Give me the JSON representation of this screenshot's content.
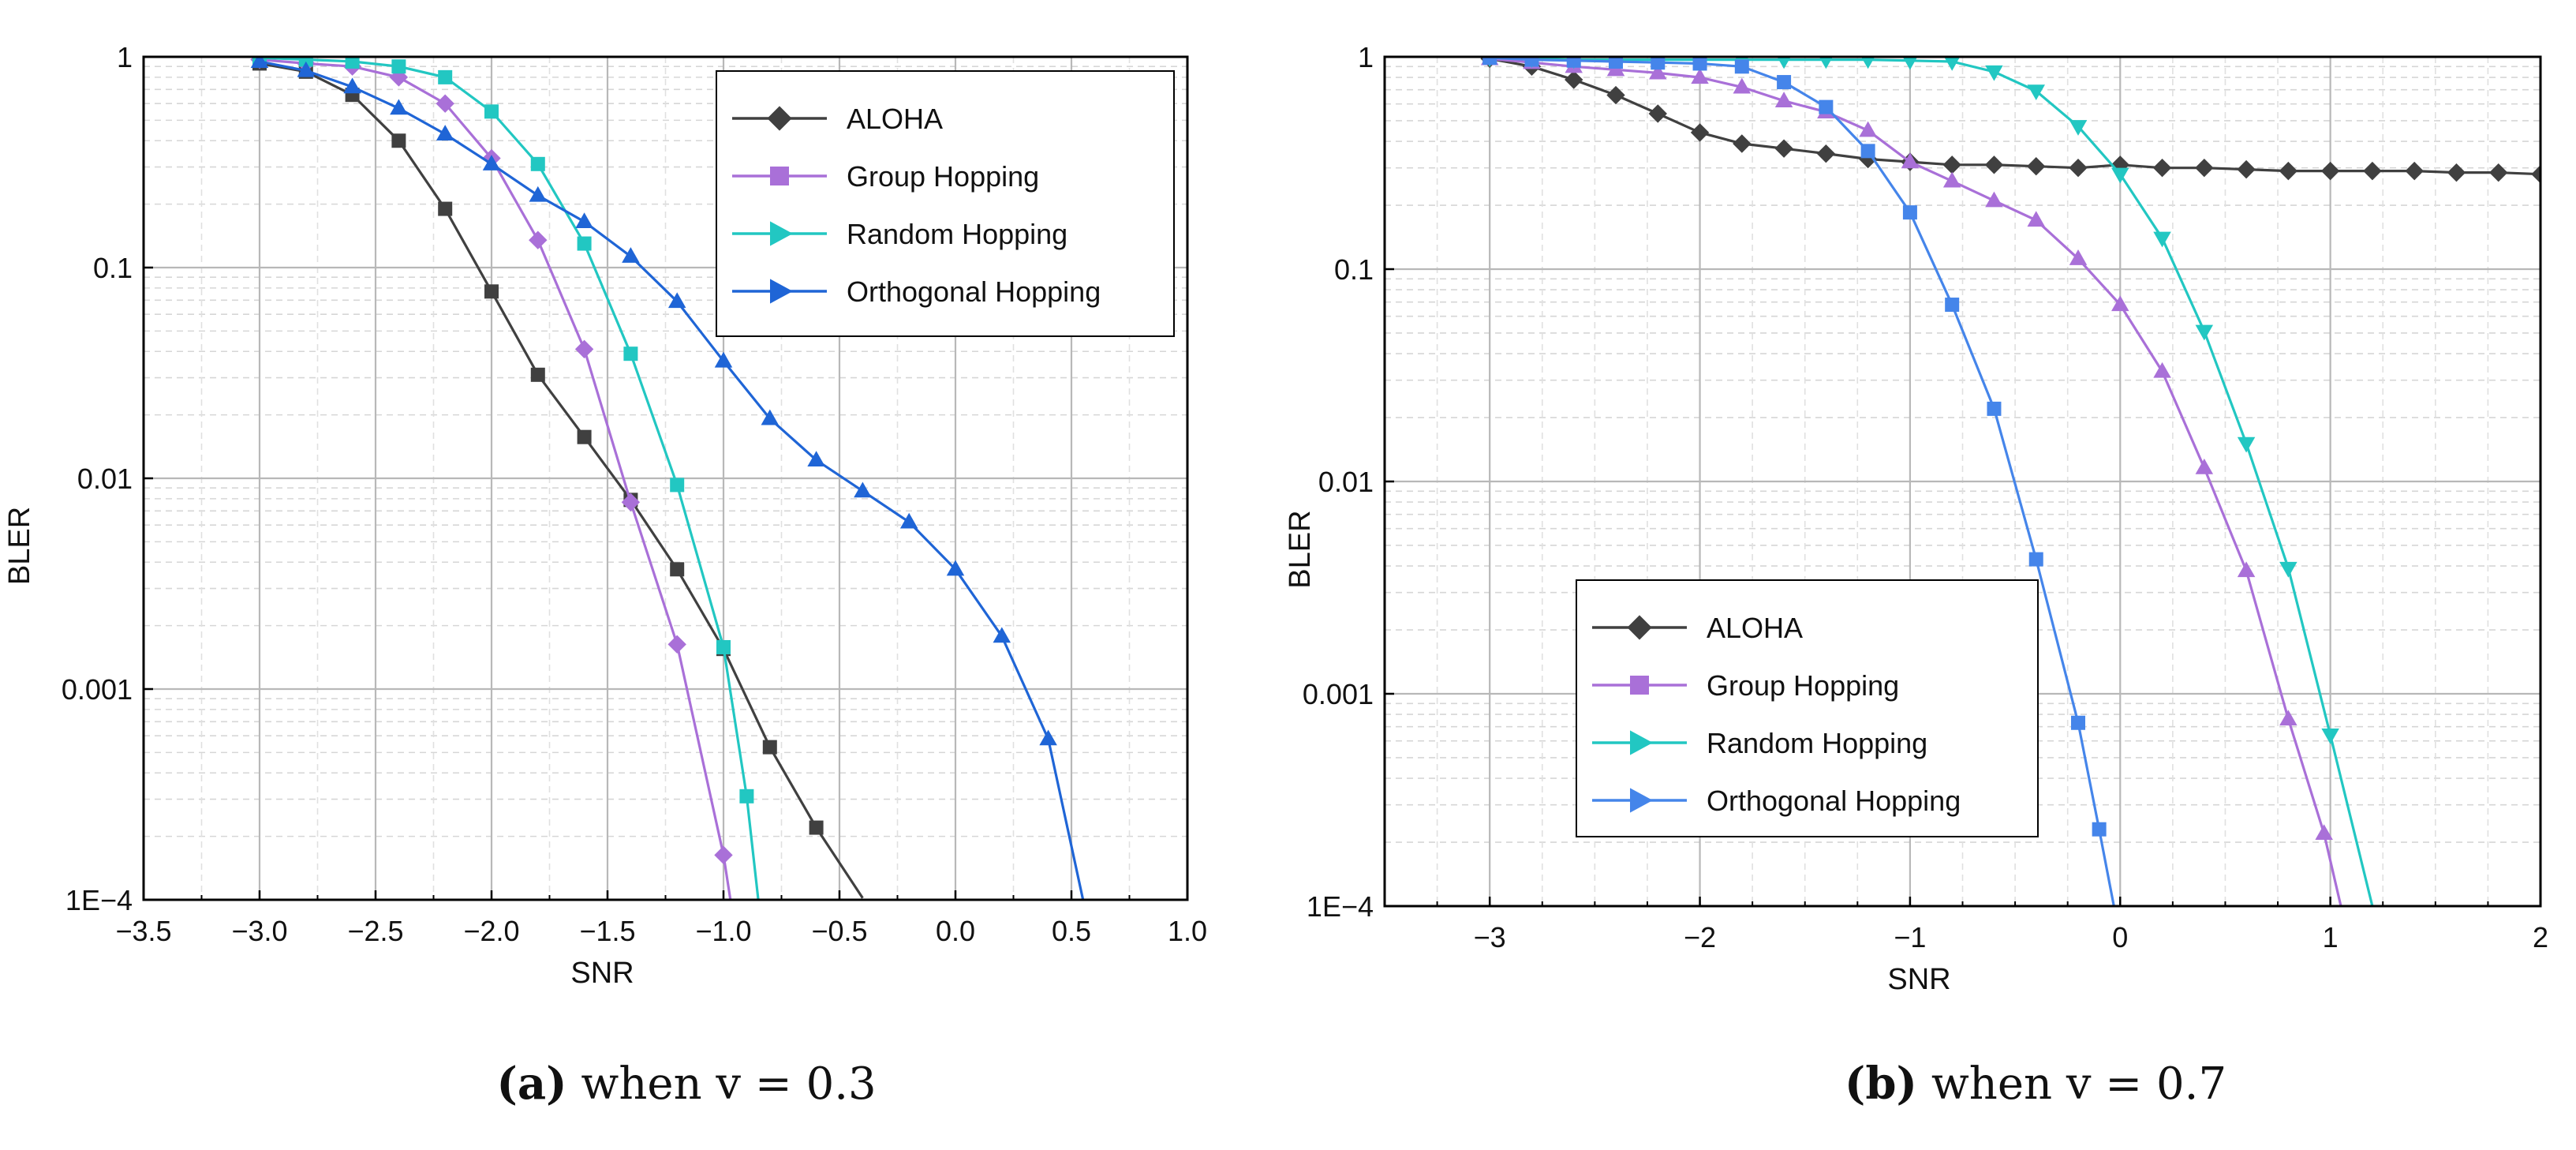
{
  "charts": [
    {
      "type": "line",
      "xlabel": "SNR",
      "ylabel": "BLER",
      "xlim": [
        -3.5,
        1.0
      ],
      "ylim": [
        0.0001,
        1
      ],
      "yscale": "log",
      "xticks": [
        "−3.5",
        "−3.0",
        "−2.5",
        "−2.0",
        "−1.5",
        "−1.0",
        "−0.5",
        "0.0",
        "0.5",
        "1.0"
      ],
      "yticks": [
        "1",
        "0.1",
        "0.01",
        "0.001",
        "1E−4"
      ],
      "grid": true,
      "legend_position": "top-right",
      "caption_label": "(a)",
      "caption_text": " when v = 0.3",
      "series": [
        {
          "name": "ALOHA",
          "color": "#404040",
          "marker": "square",
          "x": [
            -3.0,
            -2.8,
            -2.6,
            -2.4,
            -2.2,
            -2.0,
            -1.8,
            -1.6,
            -1.4,
            -1.2,
            -1.0,
            -0.8,
            -0.6,
            -0.4
          ],
          "y": [
            0.93,
            0.85,
            0.66,
            0.4,
            0.19,
            0.077,
            0.031,
            0.0157,
            0.0079,
            0.0037,
            0.00155,
            0.00053,
            0.00022,
            0.000102
          ]
        },
        {
          "name": "Group Hopping",
          "color": "#a970d8",
          "marker": "diamond",
          "x": [
            -3.0,
            -2.8,
            -2.6,
            -2.4,
            -2.2,
            -2.0,
            -1.8,
            -1.6,
            -1.4,
            -1.2,
            -1.0,
            -0.97
          ],
          "y": [
            0.97,
            0.93,
            0.9,
            0.8,
            0.6,
            0.33,
            0.135,
            0.041,
            0.0077,
            0.00163,
            0.000163,
            0.0001
          ]
        },
        {
          "name": "Random Hopping",
          "color": "#22c7c2",
          "marker": "square",
          "x": [
            -3.0,
            -2.8,
            -2.6,
            -2.4,
            -2.2,
            -2.0,
            -1.8,
            -1.6,
            -1.4,
            -1.2,
            -1.0,
            -0.9,
            -0.85
          ],
          "y": [
            0.99,
            0.97,
            0.95,
            0.9,
            0.8,
            0.55,
            0.31,
            0.13,
            0.039,
            0.0093,
            0.00158,
            0.00031,
            0.0001
          ]
        },
        {
          "name": "Orthogonal Hopping",
          "color": "#1f65d6",
          "marker": "triangle-up",
          "x": [
            -3.0,
            -2.8,
            -2.6,
            -2.4,
            -2.2,
            -2.0,
            -1.8,
            -1.6,
            -1.4,
            -1.2,
            -1.0,
            -0.8,
            -0.6,
            -0.4,
            -0.2,
            0.0,
            0.2,
            0.4,
            0.55
          ],
          "y": [
            0.95,
            0.86,
            0.72,
            0.57,
            0.43,
            0.31,
            0.22,
            0.165,
            0.113,
            0.069,
            0.036,
            0.0192,
            0.0122,
            0.0087,
            0.0062,
            0.0037,
            0.00178,
            0.00058,
            0.0001
          ]
        }
      ]
    },
    {
      "type": "line",
      "xlabel": "SNR",
      "ylabel": "BLER",
      "xlim": [
        -3.5,
        2.0
      ],
      "ylim": [
        0.0001,
        1
      ],
      "yscale": "log",
      "xticks": [
        "−3",
        "−2",
        "−1",
        "0",
        "1",
        "2"
      ],
      "yticks": [
        "1",
        "0.1",
        "0.01",
        "0.001",
        "1E−4"
      ],
      "grid": true,
      "legend_position": "bottom-left",
      "caption_label": "(b)",
      "caption_text": " when v = 0.7",
      "series": [
        {
          "name": "ALOHA",
          "color": "#404040",
          "marker": "diamond",
          "x": [
            -3.0,
            -2.8,
            -2.6,
            -2.4,
            -2.2,
            -2.0,
            -1.8,
            -1.6,
            -1.4,
            -1.2,
            -1.0,
            -0.8,
            -0.6,
            -0.4,
            -0.2,
            0.0,
            0.2,
            0.4,
            0.6,
            0.8,
            1.0,
            1.2,
            1.4,
            1.6,
            1.8,
            2.0
          ],
          "y": [
            0.98,
            0.9,
            0.78,
            0.66,
            0.54,
            0.44,
            0.39,
            0.37,
            0.35,
            0.33,
            0.32,
            0.31,
            0.31,
            0.305,
            0.3,
            0.31,
            0.3,
            0.3,
            0.295,
            0.29,
            0.29,
            0.29,
            0.29,
            0.285,
            0.285,
            0.28
          ]
        },
        {
          "name": "Group Hopping",
          "color": "#a970d8",
          "marker": "triangle-up",
          "x": [
            -3.0,
            -2.8,
            -2.6,
            -2.4,
            -2.2,
            -2.0,
            -1.8,
            -1.6,
            -1.4,
            -1.2,
            -1.0,
            -0.8,
            -0.6,
            -0.4,
            -0.2,
            0.0,
            0.2,
            0.4,
            0.6,
            0.8,
            0.97,
            1.05
          ],
          "y": [
            0.98,
            0.94,
            0.9,
            0.87,
            0.84,
            0.8,
            0.72,
            0.62,
            0.55,
            0.45,
            0.32,
            0.26,
            0.21,
            0.17,
            0.112,
            0.068,
            0.033,
            0.0116,
            0.0038,
            0.00076,
            0.00022,
            0.0001
          ]
        },
        {
          "name": "Random Hopping",
          "color": "#22c7c2",
          "marker": "triangle-down",
          "x": [
            -3.0,
            -2.8,
            -2.6,
            -2.4,
            -2.2,
            -2.0,
            -1.8,
            -1.6,
            -1.4,
            -1.2,
            -1.0,
            -0.8,
            -0.6,
            -0.4,
            -0.2,
            0.0,
            0.2,
            0.4,
            0.6,
            0.8,
            1.0,
            1.2
          ],
          "y": [
            0.99,
            0.98,
            0.97,
            0.97,
            0.97,
            0.97,
            0.97,
            0.97,
            0.97,
            0.97,
            0.96,
            0.95,
            0.85,
            0.69,
            0.47,
            0.28,
            0.14,
            0.051,
            0.0151,
            0.0039,
            0.00064,
            0.0001
          ]
        },
        {
          "name": "Orthogonal Hopping",
          "color": "#4585ea",
          "marker": "square",
          "x": [
            -3.0,
            -2.8,
            -2.6,
            -2.4,
            -2.2,
            -2.0,
            -1.8,
            -1.6,
            -1.4,
            -1.2,
            -1.0,
            -0.8,
            -0.6,
            -0.4,
            -0.2,
            -0.1,
            -0.03
          ],
          "y": [
            0.99,
            0.97,
            0.96,
            0.95,
            0.94,
            0.93,
            0.9,
            0.76,
            0.58,
            0.36,
            0.185,
            0.068,
            0.022,
            0.0043,
            0.00073,
            0.00023,
            0.0001
          ]
        }
      ]
    }
  ]
}
